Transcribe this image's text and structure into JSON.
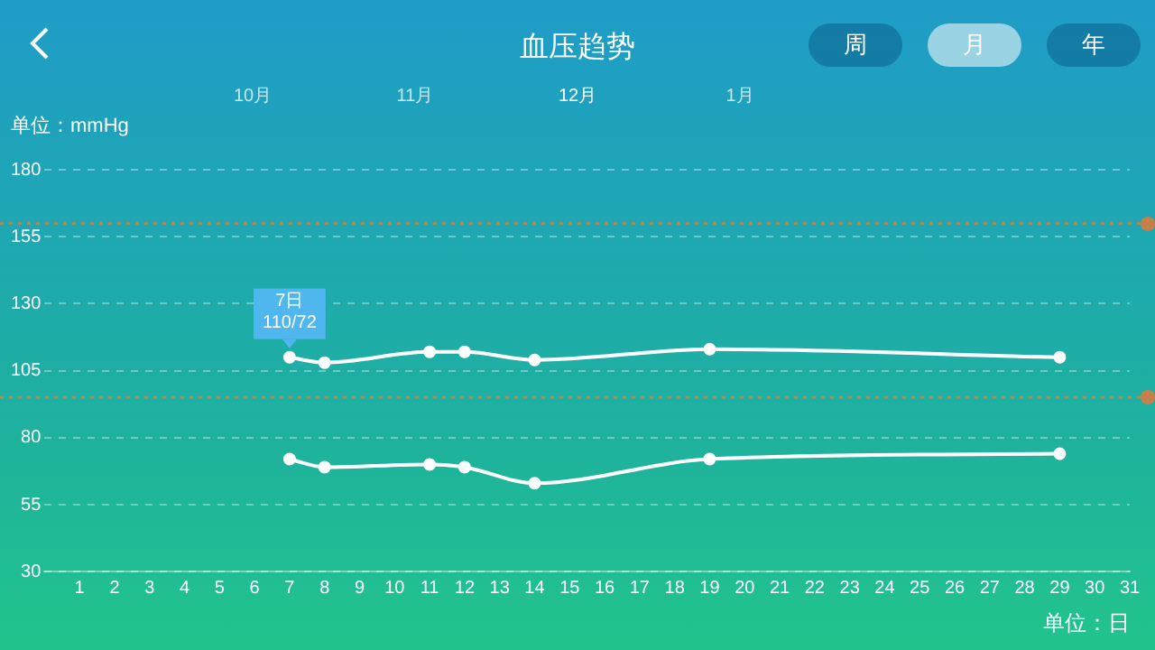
{
  "chart_data": {
    "type": "line",
    "title": "血压趋势",
    "ylabel": "单位：mmHg",
    "xlabel": "单位：日",
    "annotations": [
      "10月",
      "11月",
      "12月",
      "1月",
      "周",
      "月",
      "年",
      {
        "text": "7日\n110/72",
        "x": 7,
        "y": 110
      }
    ],
    "series": [
      {
        "color": "#ffffff",
        "x": [
          7,
          8,
          11,
          12,
          14,
          19,
          29
        ],
        "values": [
          110,
          108,
          112,
          112,
          109,
          113,
          110
        ]
      },
      {
        "color": "#ffffff",
        "x": [
          7,
          8,
          11,
          12,
          14,
          19,
          29
        ],
        "values": [
          72,
          69,
          70,
          69,
          63,
          72,
          74
        ]
      }
    ],
    "xlim": [
      0,
      31
    ],
    "xticks": [
      1,
      2,
      3,
      4,
      5,
      6,
      7,
      8,
      9,
      10,
      11,
      12,
      13,
      14,
      15,
      16,
      17,
      18,
      19,
      20,
      21,
      22,
      23,
      24,
      25,
      26,
      27,
      28,
      29,
      30,
      31
    ],
    "ylim": [
      30,
      180
    ],
    "yticks": [
      30,
      55,
      80,
      105,
      130,
      155,
      180
    ],
    "ref_lines": [
      {
        "axis": "y",
        "value": 160,
        "color": "#c8804a",
        "line_style": "dotted"
      },
      {
        "axis": "y",
        "value": 95,
        "color": "#c8804a",
        "line_style": "dotted"
      }
    ],
    "grid": "y",
    "marker": "circle",
    "line_style": "solid",
    "legend": false
  }
}
